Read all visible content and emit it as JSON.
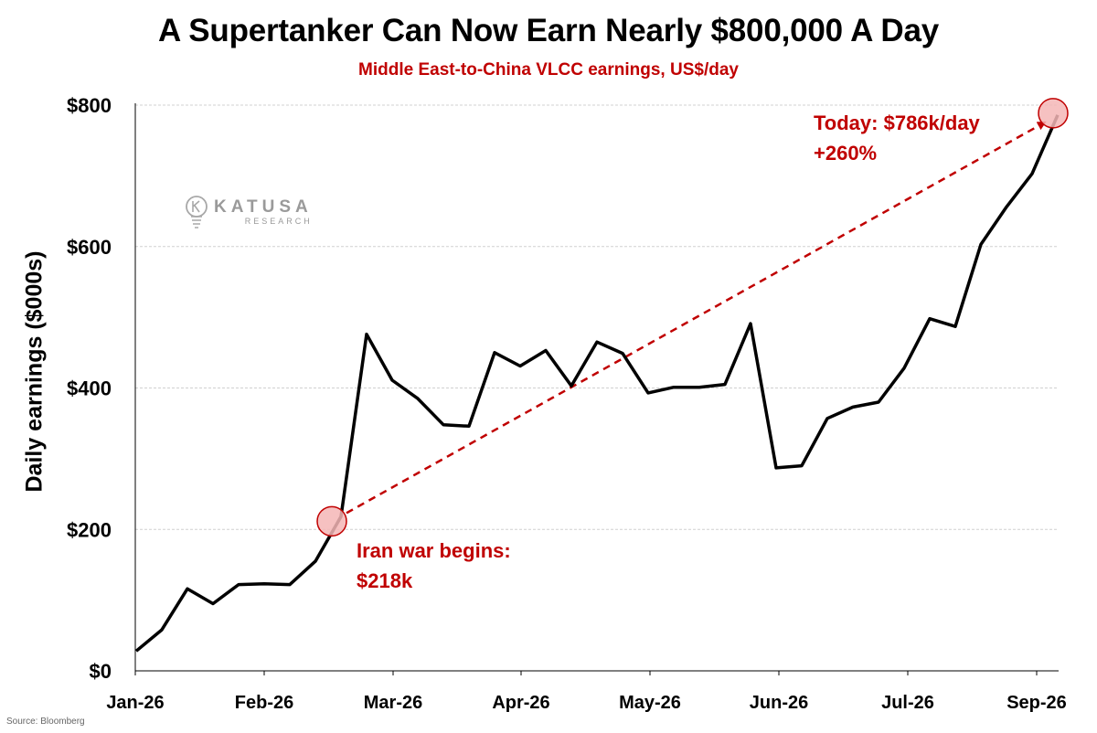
{
  "title": "A Supertanker Can Now Earn Nearly $800,000 A Day",
  "subtitle": "Middle East-to-China VLCC earnings, US$/day",
  "source": "Source: Bloomberg",
  "watermark": {
    "name": "KATUSA",
    "sub": "RESEARCH",
    "icon": "lightbulb-icon"
  },
  "colors": {
    "line": "#000000",
    "accent": "#c00000",
    "marker_fill": "#f4b6b6",
    "grid": "#d0d0d0"
  },
  "chart_data": {
    "type": "line",
    "title": "A Supertanker Can Now Earn Nearly $800,000 A Day",
    "subtitle": "Middle East-to-China VLCC earnings, US$/day",
    "xlabel": "",
    "ylabel": "Daily earnings ($000s)",
    "ylim": [
      0,
      800
    ],
    "yticks": [
      0,
      200,
      400,
      600,
      800
    ],
    "ytick_labels": [
      "$0",
      "$200",
      "$400",
      "$600",
      "$800"
    ],
    "xticks": [
      "Jan-26",
      "Feb-26",
      "Mar-26",
      "Apr-26",
      "May-26",
      "Jun-26",
      "Jul-26",
      "Sep-26"
    ],
    "grid": true,
    "series": [
      {
        "values": [
          28,
          58,
          116,
          95,
          122,
          123,
          122,
          155,
          218,
          476,
          411,
          385,
          348,
          346,
          450,
          431,
          453,
          403,
          465,
          449,
          393,
          401,
          401,
          405,
          491,
          287,
          290,
          357,
          373,
          380,
          428,
          498,
          487,
          603,
          656,
          703,
          786
        ]
      }
    ],
    "annotations": [
      {
        "label": [
          "Iran war begins:",
          "$218k"
        ],
        "point_index": 8,
        "value": 218
      },
      {
        "label": [
          "Today: $786k/day",
          "+260%"
        ],
        "point_index": 36,
        "value": 786
      }
    ],
    "trend_arrow": {
      "from_index": 8,
      "to_index": 36,
      "style": "dashed"
    }
  }
}
